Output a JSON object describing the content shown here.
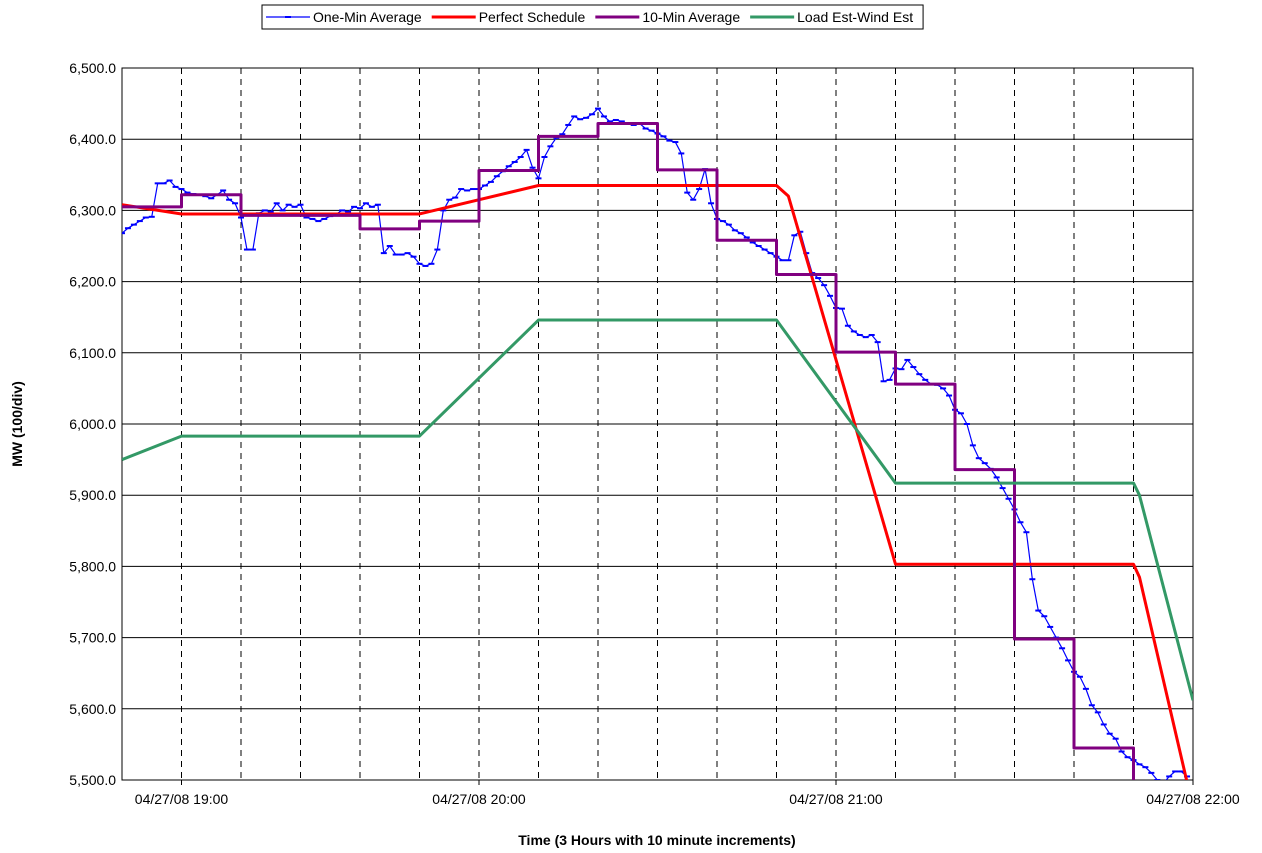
{
  "chart_data": {
    "type": "line",
    "y_label": "MW (100/div)",
    "x_label": "Time (3 Hours with 10 minute increments)",
    "xlim": [
      0,
      180
    ],
    "xticks": [
      {
        "value": 10,
        "label": "04/27/08 19:00"
      },
      {
        "value": 60,
        "label": "04/27/08 20:00"
      },
      {
        "value": 120,
        "label": "04/27/08 21:00"
      },
      {
        "value": 180,
        "label": "04/27/08 22:00"
      }
    ],
    "xgrid": [
      10,
      20,
      30,
      40,
      50,
      60,
      70,
      80,
      90,
      100,
      110,
      120,
      130,
      140,
      150,
      160,
      170
    ],
    "ylim": [
      5500,
      6500
    ],
    "yticks": [
      {
        "value": 5500,
        "label": "5,500.0"
      },
      {
        "value": 5600,
        "label": "5,600.0"
      },
      {
        "value": 5700,
        "label": "5,700.0"
      },
      {
        "value": 5800,
        "label": "5,800.0"
      },
      {
        "value": 5900,
        "label": "5,900.0"
      },
      {
        "value": 6000,
        "label": "6,000.0"
      },
      {
        "value": 6100,
        "label": "6,100.0"
      },
      {
        "value": 6200,
        "label": "6,200.0"
      },
      {
        "value": 6300,
        "label": "6,300.0"
      },
      {
        "value": 6400,
        "label": "6,400.0"
      },
      {
        "value": 6500,
        "label": "6,500.0"
      }
    ],
    "grid": true,
    "legend": "top",
    "series": [
      {
        "name": "One-Min Average",
        "color": "#0000ff",
        "marker": "dash",
        "x": [
          0,
          1,
          2,
          3,
          4,
          5,
          6,
          7,
          8,
          9,
          10,
          11,
          12,
          13,
          14,
          15,
          16,
          17,
          18,
          19,
          20,
          21,
          22,
          23,
          24,
          25,
          26,
          27,
          28,
          29,
          30,
          31,
          32,
          33,
          34,
          35,
          36,
          37,
          38,
          39,
          40,
          41,
          42,
          43,
          44,
          45,
          46,
          47,
          48,
          49,
          50,
          51,
          52,
          53,
          54,
          55,
          56,
          57,
          58,
          59,
          60,
          61,
          62,
          63,
          64,
          65,
          66,
          67,
          68,
          69,
          70,
          71,
          72,
          73,
          74,
          75,
          76,
          77,
          78,
          79,
          80,
          81,
          82,
          83,
          84,
          85,
          86,
          87,
          88,
          89,
          90,
          91,
          92,
          93,
          94,
          95,
          96,
          97,
          98,
          99,
          100,
          101,
          102,
          103,
          104,
          105,
          106,
          107,
          108,
          109,
          110,
          111,
          112,
          113,
          114,
          115,
          116,
          117,
          118,
          119,
          120,
          121,
          122,
          123,
          124,
          125,
          126,
          127,
          128,
          129,
          130,
          131,
          132,
          133,
          134,
          135,
          136,
          137,
          138,
          139,
          140,
          141,
          142,
          143,
          144,
          145,
          146,
          147,
          148,
          149,
          150,
          151,
          152,
          153,
          154,
          155,
          156,
          157,
          158,
          159,
          160,
          161,
          162,
          163,
          164,
          165,
          166,
          167,
          168,
          169,
          170,
          171,
          172,
          173,
          174,
          175,
          176,
          177,
          178,
          179
        ],
        "values": [
          6268,
          6275,
          6280,
          6285,
          6290,
          6291,
          6338,
          6338,
          6342,
          6333,
          6330,
          6325,
          6323,
          6322,
          6320,
          6317,
          6322,
          6328,
          6315,
          6310,
          6290,
          6245,
          6245,
          6296,
          6300,
          6298,
          6310,
          6300,
          6308,
          6305,
          6308,
          6290,
          6288,
          6285,
          6288,
          6292,
          6295,
          6300,
          6298,
          6305,
          6303,
          6310,
          6305,
          6308,
          6240,
          6250,
          6238,
          6238,
          6240,
          6235,
          6225,
          6222,
          6225,
          6245,
          6300,
          6315,
          6318,
          6330,
          6328,
          6330,
          6330,
          6335,
          6340,
          6348,
          6355,
          6362,
          6368,
          6375,
          6385,
          6360,
          6345,
          6375,
          6390,
          6402,
          6407,
          6420,
          6432,
          6428,
          6430,
          6435,
          6443,
          6432,
          6425,
          6427,
          6425,
          6422,
          6420,
          6422,
          6415,
          6412,
          6408,
          6404,
          6398,
          6396,
          6380,
          6325,
          6315,
          6330,
          6358,
          6310,
          6288,
          6285,
          6280,
          6272,
          6268,
          6262,
          6255,
          6250,
          6245,
          6240,
          6235,
          6230,
          6230,
          6265,
          6270,
          6240,
          6212,
          6205,
          6195,
          6180,
          6163,
          6162,
          6138,
          6130,
          6125,
          6122,
          6125,
          6115,
          6060,
          6062,
          6078,
          6077,
          6090,
          6080,
          6070,
          6062,
          6056,
          6055,
          6050,
          6040,
          6020,
          6015,
          6000,
          5970,
          5952,
          5945,
          5937,
          5925,
          5910,
          5895,
          5880,
          5862,
          5848,
          5782,
          5738,
          5730,
          5715,
          5700,
          5685,
          5668,
          5652,
          5645,
          5628,
          5605,
          5595,
          5578,
          5565,
          5558,
          5540,
          5532,
          5528,
          5522,
          5518,
          5510,
          5500,
          5495,
          5505,
          5512,
          5512,
          5505
        ]
      },
      {
        "name": "Perfect Schedule",
        "color": "#ff0000",
        "x": [
          0,
          10,
          50,
          70,
          110,
          112,
          130,
          170,
          171,
          179
        ],
        "values": [
          6308,
          6295,
          6295,
          6335,
          6335,
          6320,
          5803,
          5803,
          5785,
          5497
        ]
      },
      {
        "name": "10-Min Average",
        "color": "#800080",
        "x": [
          0,
          10,
          10,
          20,
          20,
          40,
          40,
          50,
          50,
          60,
          60,
          70,
          70,
          80,
          80,
          90,
          90,
          100,
          100,
          110,
          110,
          120,
          120,
          130,
          130,
          140,
          140,
          150,
          150,
          160,
          160,
          170,
          170
        ],
        "values": [
          6305,
          6305,
          6322,
          6322,
          6293,
          6293,
          6274,
          6274,
          6285,
          6285,
          6356,
          6356,
          6404,
          6404,
          6422,
          6422,
          6357,
          6357,
          6258,
          6258,
          6210,
          6210,
          6101,
          6101,
          6056,
          6056,
          5936,
          5936,
          5698,
          5698,
          5545,
          5545,
          5495
        ]
      },
      {
        "name": "Load Est-Wind Est",
        "color": "#339966",
        "x": [
          0,
          10,
          50,
          70,
          110,
          130,
          170,
          171,
          180
        ],
        "values": [
          5950,
          5983,
          5983,
          6146,
          6146,
          5917,
          5917,
          5900,
          5612
        ]
      }
    ]
  }
}
